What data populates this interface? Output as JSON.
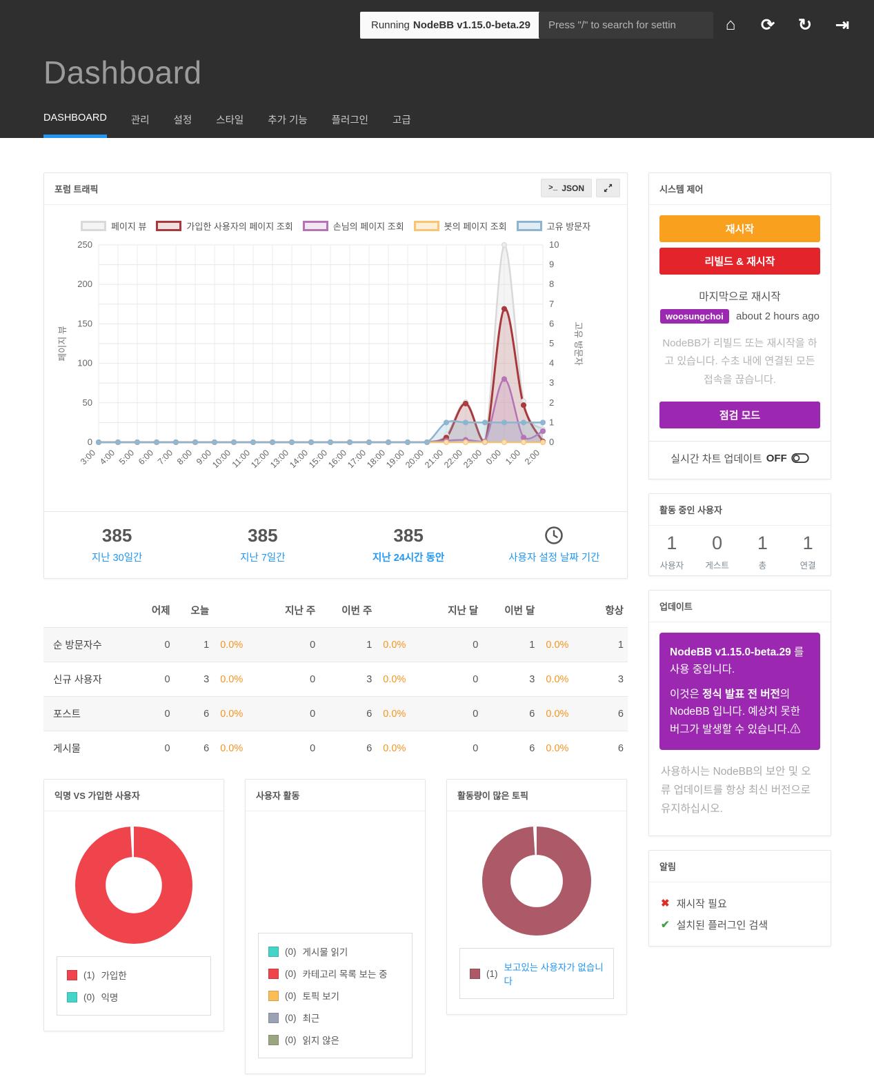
{
  "topbar": {
    "running_prefix": "Running",
    "version": "NodeBB v1.15.0-beta.29",
    "search_placeholder": "Press \"/\" to search for settin",
    "icons": [
      {
        "name": "home-icon",
        "glyph": "⌂"
      },
      {
        "name": "refresh-icon",
        "glyph": "⟳"
      },
      {
        "name": "rotate-right-icon",
        "glyph": "↻"
      },
      {
        "name": "sign-out-icon",
        "glyph": "⇥"
      }
    ]
  },
  "header": {
    "title": "Dashboard",
    "tabs": [
      {
        "label": "DASHBOARD",
        "active": true
      },
      {
        "label": "관리",
        "active": false
      },
      {
        "label": "설정",
        "active": false
      },
      {
        "label": "스타일",
        "active": false
      },
      {
        "label": "추가 기능",
        "active": false
      },
      {
        "label": "플러그인",
        "active": false
      },
      {
        "label": "고급",
        "active": false
      }
    ]
  },
  "traffic": {
    "title": "포럼 트래픽",
    "prompt_glyph": ">_",
    "json_button": "JSON",
    "stats": [
      {
        "value": "385",
        "label": "지난 30일간",
        "bold": false,
        "icon": ""
      },
      {
        "value": "385",
        "label": "지난 7일간",
        "bold": false,
        "icon": ""
      },
      {
        "value": "385",
        "label": "지난 24시간 동안",
        "bold": true,
        "icon": ""
      },
      {
        "value": "",
        "label": "사용자 설정 날짜 기간",
        "bold": false,
        "icon": "clock"
      }
    ]
  },
  "chart_data": {
    "type": "line",
    "title": "포럼 트래픽",
    "x": [
      "3:00",
      "4:00",
      "5:00",
      "6:00",
      "7:00",
      "8:00",
      "9:00",
      "10:00",
      "11:00",
      "12:00",
      "13:00",
      "14:00",
      "15:00",
      "16:00",
      "17:00",
      "18:00",
      "19:00",
      "20:00",
      "21:00",
      "22:00",
      "23:00",
      "0:00",
      "1:00",
      "2:00"
    ],
    "y_left": {
      "label": "페이지 뷰",
      "range": [
        0,
        250
      ],
      "ticks": [
        0,
        50,
        100,
        150,
        200,
        250
      ]
    },
    "y_right": {
      "label": "고유 방문자",
      "range": [
        0,
        10
      ],
      "ticks": [
        0,
        1,
        2,
        3,
        4,
        5,
        6,
        7,
        8,
        9,
        10
      ]
    },
    "grid": true,
    "legend_position": "top",
    "series": [
      {
        "name": "페이지 뷰",
        "axis": "left",
        "color": "#d9d9d9",
        "fill": "rgba(224,224,224,0.35)",
        "point": "#ededed",
        "values": [
          0,
          0,
          0,
          0,
          0,
          0,
          0,
          0,
          0,
          0,
          0,
          0,
          0,
          0,
          0,
          0,
          0,
          0,
          9,
          51,
          1,
          250,
          52,
          16
        ]
      },
      {
        "name": "가입한 사용자의 페이지 조회",
        "axis": "left",
        "color": "#a8383b",
        "fill": "rgba(168,56,59,0.16)",
        "point": "#a8383b",
        "values": [
          0,
          0,
          0,
          0,
          0,
          0,
          0,
          0,
          0,
          0,
          0,
          0,
          0,
          0,
          0,
          0,
          0,
          0,
          6,
          49,
          0,
          169,
          47,
          1
        ]
      },
      {
        "name": "손님의 페이지 조회",
        "axis": "left",
        "color": "#b573b5",
        "fill": "rgba(181,115,181,0.18)",
        "point": "#b573b5",
        "values": [
          0,
          0,
          0,
          0,
          0,
          0,
          0,
          0,
          0,
          0,
          0,
          0,
          0,
          0,
          0,
          0,
          0,
          0,
          2,
          3,
          1,
          80,
          6,
          14
        ]
      },
      {
        "name": "봇의 페이지 조회",
        "axis": "left",
        "color": "#f8c471",
        "fill": "rgba(248,196,113,0.28)",
        "point": "#fce4b8",
        "values": [
          0,
          0,
          0,
          0,
          0,
          0,
          0,
          0,
          0,
          0,
          0,
          0,
          0,
          0,
          0,
          0,
          0,
          0,
          0,
          0,
          0,
          0,
          0,
          0
        ]
      },
      {
        "name": "고유 방문자",
        "axis": "right",
        "color": "#8db4d1",
        "fill": "rgba(141,180,209,0.25)",
        "point": "#8db4d1",
        "values": [
          0,
          0,
          0,
          0,
          0,
          0,
          0,
          0,
          0,
          0,
          0,
          0,
          0,
          0,
          0,
          0,
          0,
          0,
          1,
          1,
          1,
          1,
          1,
          1
        ]
      }
    ]
  },
  "table": {
    "headers": [
      "",
      "어제",
      "오늘",
      "",
      "지난 주",
      "이번 주",
      "",
      "지난 달",
      "이번 달",
      "",
      "항상"
    ],
    "rows": [
      {
        "label": "순 방문자수",
        "cells": [
          "0",
          "1",
          "0.0%",
          "0",
          "1",
          "0.0%",
          "0",
          "1",
          "0.0%",
          "1"
        ]
      },
      {
        "label": "신규 사용자",
        "cells": [
          "0",
          "3",
          "0.0%",
          "0",
          "3",
          "0.0%",
          "0",
          "3",
          "0.0%",
          "3"
        ]
      },
      {
        "label": "포스트",
        "cells": [
          "0",
          "6",
          "0.0%",
          "0",
          "6",
          "0.0%",
          "0",
          "6",
          "0.0%",
          "6"
        ]
      },
      {
        "label": "게시물",
        "cells": [
          "0",
          "6",
          "0.0%",
          "0",
          "6",
          "0.0%",
          "0",
          "6",
          "0.0%",
          "6"
        ]
      }
    ]
  },
  "donut_cards": [
    {
      "title": "익명 VS 가입한 사용자",
      "empty_chart": false,
      "size": 170,
      "slices": [
        {
          "label": "가입한",
          "count": 1,
          "color": "#f0444c",
          "link": false
        },
        {
          "label": "익명",
          "count": 0,
          "color": "#45d5c8",
          "link": false
        }
      ]
    },
    {
      "title": "사용자 활동",
      "empty_chart": true,
      "size": 0,
      "slices": [
        {
          "label": "게시물 읽기",
          "count": 0,
          "color": "#45d5c8",
          "link": false
        },
        {
          "label": "카테고리 목록 보는 중",
          "count": 0,
          "color": "#f0444c",
          "link": false
        },
        {
          "label": "토픽 보기",
          "count": 0,
          "color": "#f9bd5a",
          "link": false
        },
        {
          "label": "최근",
          "count": 0,
          "color": "#9aa3b5",
          "link": false
        },
        {
          "label": "읽지 않은",
          "count": 0,
          "color": "#9aa581",
          "link": false
        }
      ]
    },
    {
      "title": "활동량이 많은 토픽",
      "empty_chart": false,
      "size": 158,
      "slices": [
        {
          "label": "보고있는 사용자가 없습니다",
          "count": 1,
          "color": "#ad5a68",
          "link": true
        }
      ]
    }
  ],
  "system": {
    "title": "시스템 제어",
    "restart_label": "재시작",
    "rebuild_label": "리빌드 & 재시작",
    "last_restart_label": "마지막으로 재시작",
    "restart_user": "woosungchoi",
    "restart_ago": "about 2 hours ago",
    "warning_text": "NodeBB가 리빌드 또는 재시작을 하고 있습니다. 수초 내에 연결된 모든 접속을 끊습니다.",
    "maintenance_label": "점검 모드",
    "realtime_label": "실시간 차트 업데이트",
    "realtime_state": "OFF"
  },
  "active_users": {
    "title": "활동 중인 사용자",
    "stats": [
      {
        "value": "1",
        "label": "사용자"
      },
      {
        "value": "0",
        "label": "게스트"
      },
      {
        "value": "1",
        "label": "총"
      },
      {
        "value": "1",
        "label": "연결"
      }
    ]
  },
  "updates": {
    "title": "업데이트",
    "alert": {
      "bold1": "NodeBB v1.15.0-beta.29",
      "rest1": " 를 사용 중입니다.",
      "pre2": "이것은 ",
      "bold2": "정식 발표 전 버전",
      "rest2": "의 NodeBB 입니다. 예상치 못한 버그가 발생할 수 있습니다.",
      "warn_icon": "⚠"
    },
    "note": "사용하시는 NodeBB의 보안 및 오류 업데이트를 항상 최신 버전으로 유지하십시오."
  },
  "notices": {
    "title": "알림",
    "items": [
      {
        "icon": "x",
        "glyph": "✖",
        "color": "#d93025",
        "label": "재시작 필요"
      },
      {
        "icon": "check",
        "glyph": "✔",
        "color": "#43a047",
        "label": "설치된 플러그인 검색"
      }
    ]
  },
  "colors": {
    "accent_blue": "#2196f3",
    "orange_button": "#f9a01f",
    "red_button": "#e3242b",
    "purple": "#9c27b0",
    "pct_orange": "#f7941d"
  }
}
